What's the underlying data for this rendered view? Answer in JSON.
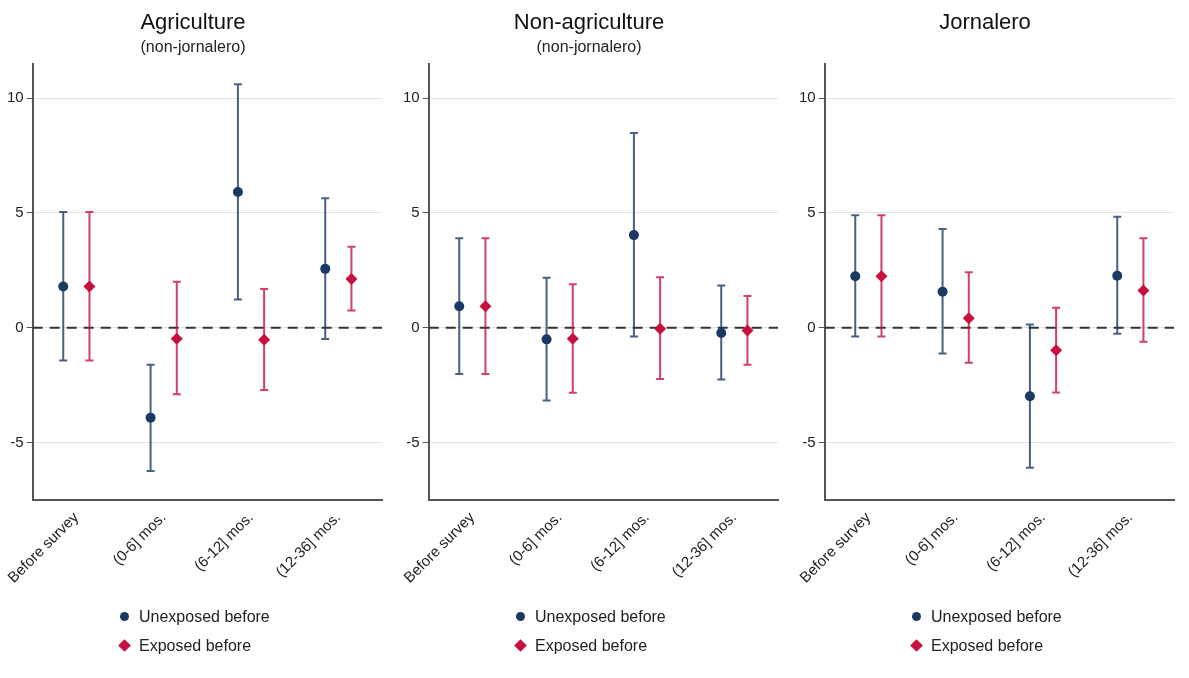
{
  "chart_data": [
    {
      "type": "scatter",
      "title": "Agriculture",
      "subtitle": "(non-jornalero)",
      "categories": [
        "Before survey",
        "(0-6] mos.",
        "(6-12] mos.",
        "(12-36] mos."
      ],
      "ylim": [
        -7.5,
        11.5
      ],
      "yticks": [
        -5,
        0,
        5,
        10
      ],
      "grid": "y",
      "legend": "bottom",
      "ref_lines": [
        {
          "axis": "y",
          "value": 0,
          "line_style": "dashed",
          "color": "#333333"
        }
      ],
      "series": [
        {
          "name": "Unexposed before",
          "color": "#1a3a64",
          "marker": "circle",
          "values": [
            1.79,
            -3.92,
            5.91,
            2.56
          ],
          "errors": [
            [
              -1.43,
              5.04
            ],
            [
              -6.24,
              -1.62
            ],
            [
              1.23,
              10.6
            ],
            [
              -0.5,
              5.64
            ]
          ]
        },
        {
          "name": "Exposed before",
          "color": "#c8103e",
          "marker": "diamond",
          "values": [
            1.79,
            -0.48,
            -0.53,
            2.12
          ],
          "errors": [
            [
              -1.43,
              5.04
            ],
            [
              -2.9,
              2.0
            ],
            [
              -2.72,
              1.68
            ],
            [
              0.75,
              3.52
            ]
          ]
        }
      ]
    },
    {
      "type": "scatter",
      "title": "Non-agriculture",
      "subtitle": "(non-jornalero)",
      "categories": [
        "Before survey",
        "(0-6] mos.",
        "(6-12] mos.",
        "(12-36] mos."
      ],
      "ylim": [
        -7.5,
        11.5
      ],
      "yticks": [
        -5,
        0,
        5,
        10
      ],
      "grid": "y",
      "legend": "bottom",
      "ref_lines": [
        {
          "axis": "y",
          "value": 0,
          "line_style": "dashed",
          "color": "#333333"
        }
      ],
      "series": [
        {
          "name": "Unexposed before",
          "color": "#1a3a64",
          "marker": "circle",
          "values": [
            0.93,
            -0.51,
            4.03,
            -0.23
          ],
          "errors": [
            [
              -2.02,
              3.89
            ],
            [
              -3.17,
              2.17
            ],
            [
              -0.39,
              8.48
            ],
            [
              -2.26,
              1.83
            ]
          ]
        },
        {
          "name": "Exposed before",
          "color": "#c8103e",
          "marker": "diamond",
          "values": [
            0.93,
            -0.48,
            -0.05,
            -0.12
          ],
          "errors": [
            [
              -2.02,
              3.89
            ],
            [
              -2.84,
              1.89
            ],
            [
              -2.24,
              2.2
            ],
            [
              -1.62,
              1.38
            ]
          ]
        }
      ]
    },
    {
      "type": "scatter",
      "title": "Jornalero",
      "categories": [
        "Before survey",
        "(0-6] mos.",
        "(6-12] mos.",
        "(12-36] mos."
      ],
      "ylim": [
        -7.5,
        11.5
      ],
      "yticks": [
        -5,
        0,
        5,
        10
      ],
      "grid": "y",
      "legend": "bottom",
      "ref_lines": [
        {
          "axis": "y",
          "value": 0,
          "line_style": "dashed",
          "color": "#333333"
        }
      ],
      "series": [
        {
          "name": "Unexposed before",
          "color": "#1a3a64",
          "marker": "circle",
          "values": [
            2.24,
            1.56,
            -2.99,
            2.26
          ],
          "errors": [
            [
              -0.39,
              4.9
            ],
            [
              -1.13,
              4.3
            ],
            [
              -6.1,
              0.14
            ],
            [
              -0.27,
              4.83
            ]
          ]
        },
        {
          "name": "Exposed before",
          "color": "#c8103e",
          "marker": "diamond",
          "values": [
            2.24,
            0.41,
            -0.99,
            1.62
          ],
          "errors": [
            [
              -0.39,
              4.9
            ],
            [
              -1.53,
              2.41
            ],
            [
              -2.83,
              0.87
            ],
            [
              -0.62,
              3.89
            ]
          ]
        }
      ]
    }
  ]
}
